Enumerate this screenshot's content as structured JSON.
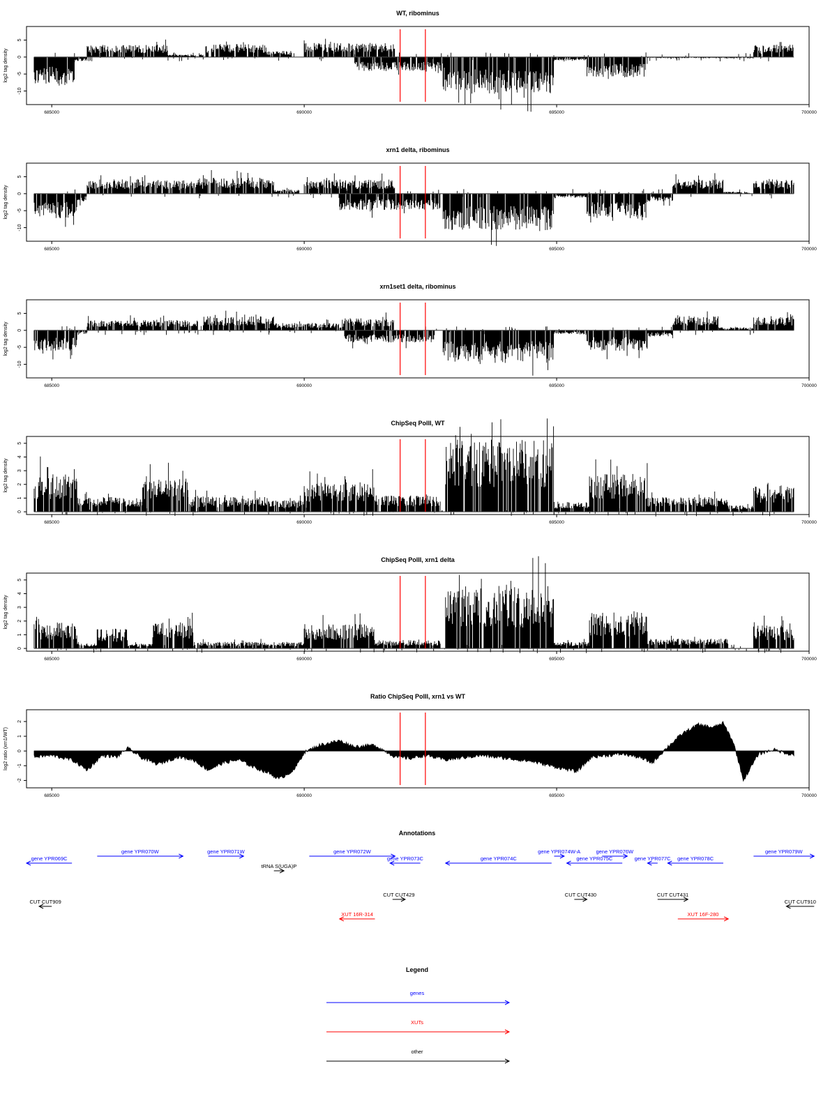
{
  "colors": {
    "genes": "#0000ff",
    "xuts": "#ff0000",
    "other": "#000000",
    "marker": "#ff0000",
    "signal": "#000000",
    "frame": "#000000"
  },
  "chart_data": [
    {
      "type": "bar",
      "title": "WT, ribominus",
      "ylabel": "log2 tag density",
      "xlim": [
        684500,
        700000
      ],
      "ylim": [
        -14,
        9
      ],
      "yticks": [
        -10,
        -5,
        0,
        5
      ],
      "xticks": [
        685000,
        690000,
        695000,
        700000
      ],
      "xtick_labels": [
        "685000",
        "690000",
        "695000",
        "700000"
      ],
      "markers": [
        691900,
        692400
      ],
      "regions": [
        {
          "start": 684650,
          "end": 685450,
          "value": -7
        },
        {
          "start": 685450,
          "end": 685700,
          "value": -1
        },
        {
          "start": 685700,
          "end": 687300,
          "value": 3
        },
        {
          "start": 687300,
          "end": 688000,
          "value": 0.6
        },
        {
          "start": 688050,
          "end": 689250,
          "value": 3.2
        },
        {
          "start": 689250,
          "end": 689800,
          "value": 1.5
        },
        {
          "start": 690000,
          "end": 691800,
          "value": 3.5
        },
        {
          "start": 691000,
          "end": 692800,
          "value": -3.5
        },
        {
          "start": 692750,
          "end": 694950,
          "value": -9
        },
        {
          "start": 694950,
          "end": 695600,
          "value": -0.8
        },
        {
          "start": 695600,
          "end": 696800,
          "value": -5
        },
        {
          "start": 696800,
          "end": 698900,
          "value": -0.3
        },
        {
          "start": 698900,
          "end": 699700,
          "value": 3
        }
      ]
    },
    {
      "type": "bar",
      "title": "xrn1 delta, ribominus",
      "ylabel": "log2 tag density",
      "xlim": [
        684500,
        700000
      ],
      "ylim": [
        -14,
        9
      ],
      "yticks": [
        -10,
        -5,
        0,
        5
      ],
      "xticks": [
        685000,
        690000,
        695000,
        700000
      ],
      "xtick_labels": [
        "685000",
        "690000",
        "695000",
        "700000"
      ],
      "markers": [
        691900,
        692400
      ],
      "regions": [
        {
          "start": 684650,
          "end": 685500,
          "value": -6
        },
        {
          "start": 685500,
          "end": 685700,
          "value": -2
        },
        {
          "start": 685700,
          "end": 688000,
          "value": 3.5
        },
        {
          "start": 688000,
          "end": 689400,
          "value": 4
        },
        {
          "start": 689400,
          "end": 689900,
          "value": 1
        },
        {
          "start": 690000,
          "end": 691800,
          "value": 3.5
        },
        {
          "start": 690700,
          "end": 692700,
          "value": -4
        },
        {
          "start": 692750,
          "end": 694950,
          "value": -9
        },
        {
          "start": 694950,
          "end": 695600,
          "value": -1
        },
        {
          "start": 695600,
          "end": 696800,
          "value": -6
        },
        {
          "start": 696800,
          "end": 697300,
          "value": -2
        },
        {
          "start": 697300,
          "end": 698300,
          "value": 3.5
        },
        {
          "start": 698300,
          "end": 698800,
          "value": 0.5
        },
        {
          "start": 698900,
          "end": 699700,
          "value": 3.5
        }
      ]
    },
    {
      "type": "bar",
      "title": "xrn1set1 delta, ribominus",
      "ylabel": "log2 tag density",
      "xlim": [
        684500,
        700000
      ],
      "ylim": [
        -14,
        9
      ],
      "yticks": [
        -10,
        -5,
        0,
        5
      ],
      "xticks": [
        685000,
        690000,
        695000,
        700000
      ],
      "xtick_labels": [
        "685000",
        "690000",
        "695000",
        "700000"
      ],
      "markers": [
        691900,
        692400
      ],
      "regions": [
        {
          "start": 684650,
          "end": 685500,
          "value": -5
        },
        {
          "start": 685500,
          "end": 685700,
          "value": -1
        },
        {
          "start": 685700,
          "end": 687900,
          "value": 2.5
        },
        {
          "start": 688000,
          "end": 689400,
          "value": 3.5
        },
        {
          "start": 689400,
          "end": 690800,
          "value": 1.8
        },
        {
          "start": 690800,
          "end": 691800,
          "value": 3
        },
        {
          "start": 690800,
          "end": 692600,
          "value": -3
        },
        {
          "start": 692750,
          "end": 694950,
          "value": -8
        },
        {
          "start": 694950,
          "end": 695600,
          "value": -1
        },
        {
          "start": 695600,
          "end": 696800,
          "value": -5
        },
        {
          "start": 696800,
          "end": 697300,
          "value": -1.5
        },
        {
          "start": 697300,
          "end": 698200,
          "value": 3.5
        },
        {
          "start": 698200,
          "end": 698900,
          "value": 0.8
        },
        {
          "start": 698900,
          "end": 699700,
          "value": 3.5
        }
      ]
    },
    {
      "type": "bar",
      "title": "ChipSeq PolII, WT",
      "ylabel": "log2 tag density",
      "xlim": [
        684500,
        700000
      ],
      "ylim": [
        -0.2,
        5.5
      ],
      "yticks": [
        0,
        1,
        2,
        3,
        4,
        5
      ],
      "xticks": [
        685000,
        690000,
        695000,
        700000
      ],
      "xtick_labels": [
        "685000",
        "690000",
        "695000",
        "700000"
      ],
      "markers": [
        691900,
        692400
      ],
      "regions": [
        {
          "start": 684650,
          "end": 685500,
          "value": 2.3
        },
        {
          "start": 685500,
          "end": 686800,
          "value": 0.9
        },
        {
          "start": 686800,
          "end": 687700,
          "value": 2
        },
        {
          "start": 687700,
          "end": 689300,
          "value": 0.9
        },
        {
          "start": 689300,
          "end": 690000,
          "value": 0.7
        },
        {
          "start": 690000,
          "end": 691400,
          "value": 1.8
        },
        {
          "start": 691400,
          "end": 692700,
          "value": 1
        },
        {
          "start": 692800,
          "end": 694950,
          "value": 4.4
        },
        {
          "start": 694950,
          "end": 695650,
          "value": 0.6
        },
        {
          "start": 695650,
          "end": 696800,
          "value": 2.3
        },
        {
          "start": 696800,
          "end": 698400,
          "value": 0.9
        },
        {
          "start": 698400,
          "end": 698900,
          "value": 0.4
        },
        {
          "start": 698900,
          "end": 699700,
          "value": 1.6
        }
      ]
    },
    {
      "type": "bar",
      "title": "ChipSeq PolII, xrn1 delta",
      "ylabel": "log2 tag density",
      "xlim": [
        684500,
        700000
      ],
      "ylim": [
        -0.2,
        5.5
      ],
      "yticks": [
        0,
        1,
        2,
        3,
        4,
        5
      ],
      "xticks": [
        685000,
        690000,
        695000,
        700000
      ],
      "xtick_labels": [
        "685000",
        "690000",
        "695000",
        "700000"
      ],
      "markers": [
        691900,
        692400
      ],
      "regions": [
        {
          "start": 684650,
          "end": 685500,
          "value": 1.6
        },
        {
          "start": 685500,
          "end": 685900,
          "value": 0.3
        },
        {
          "start": 685900,
          "end": 686500,
          "value": 1.2
        },
        {
          "start": 686500,
          "end": 687000,
          "value": 0.3
        },
        {
          "start": 687000,
          "end": 687800,
          "value": 1.6
        },
        {
          "start": 687800,
          "end": 690000,
          "value": 0.4
        },
        {
          "start": 690000,
          "end": 691400,
          "value": 1.5
        },
        {
          "start": 691400,
          "end": 692700,
          "value": 0.5
        },
        {
          "start": 692800,
          "end": 694950,
          "value": 3.8
        },
        {
          "start": 694950,
          "end": 695650,
          "value": 0.4
        },
        {
          "start": 695650,
          "end": 696800,
          "value": 2.2
        },
        {
          "start": 696800,
          "end": 698400,
          "value": 0.6
        },
        {
          "start": 698900,
          "end": 699700,
          "value": 1.4
        }
      ]
    },
    {
      "type": "area",
      "title": "Ratio ChipSeq PolII, xrn1 vs WT",
      "ylabel": "log2 ratio (xrn1/WT)",
      "xlim": [
        684500,
        700000
      ],
      "ylim": [
        -2.5,
        2.8
      ],
      "yticks": [
        -2,
        -1,
        0,
        1,
        2
      ],
      "xticks": [
        685000,
        690000,
        695000,
        700000
      ],
      "xtick_labels": [
        "685000",
        "690000",
        "695000",
        "700000"
      ],
      "markers": [
        691900,
        692400
      ],
      "x": [
        684650,
        685000,
        685400,
        685700,
        686000,
        686300,
        686500,
        686800,
        687100,
        687500,
        687800,
        688100,
        688400,
        688700,
        689000,
        689300,
        689500,
        689800,
        690000,
        690300,
        690700,
        691000,
        691400,
        691800,
        692100,
        692400,
        692800,
        693500,
        694000,
        694500,
        695000,
        695400,
        695700,
        696000,
        696300,
        696600,
        696900,
        697200,
        697500,
        697800,
        698100,
        698300,
        698500,
        698700,
        699000,
        699300,
        699700
      ],
      "y": [
        -0.4,
        -0.3,
        -0.6,
        -1.3,
        -0.3,
        -0.4,
        0.2,
        -0.5,
        -0.9,
        -0.4,
        -0.6,
        -1.3,
        -0.8,
        -0.6,
        -1.1,
        -1.5,
        -1.9,
        -1.3,
        -0.1,
        0.4,
        0.7,
        0.3,
        0.4,
        -0.4,
        -0.5,
        -0.3,
        -0.6,
        -0.3,
        -0.5,
        -0.7,
        -1.1,
        -1.4,
        -0.4,
        -0.3,
        -0.2,
        -0.4,
        -0.8,
        0.3,
        1.2,
        1.8,
        1.6,
        1.9,
        0.6,
        -2.0,
        -0.2,
        0.1,
        -0.3
      ]
    }
  ],
  "annotations": {
    "title": "Annotations",
    "features": [
      {
        "label": "gene YPR069C",
        "start": 685400,
        "end": 684500,
        "row": 1,
        "type": "genes"
      },
      {
        "label": "gene YPR070W",
        "start": 685900,
        "end": 687600,
        "row": 0,
        "type": "genes"
      },
      {
        "label": "gene YPR071W",
        "start": 688100,
        "end": 688800,
        "row": 0,
        "type": "genes"
      },
      {
        "label": "tRNA S(UGA)P",
        "start": 689400,
        "end": 689600,
        "row": 2,
        "type": "other"
      },
      {
        "label": "gene YPR072W",
        "start": 690100,
        "end": 691800,
        "row": 0,
        "type": "genes"
      },
      {
        "label": "gene YPR073C",
        "start": 692300,
        "end": 691700,
        "row": 1,
        "type": "genes"
      },
      {
        "label": "gene YPR074C",
        "start": 694900,
        "end": 692800,
        "row": 1,
        "type": "genes"
      },
      {
        "label": "gene YPR074W-A",
        "start": 694950,
        "end": 695150,
        "row": 0,
        "type": "genes"
      },
      {
        "label": "gene YPR075C",
        "start": 696300,
        "end": 695200,
        "row": 1,
        "type": "genes"
      },
      {
        "label": "gene YPR076W",
        "start": 695900,
        "end": 696400,
        "row": 0,
        "type": "genes"
      },
      {
        "label": "gene YPR077C",
        "start": 697000,
        "end": 696800,
        "row": 1,
        "type": "genes"
      },
      {
        "label": "gene YPR078C",
        "start": 698300,
        "end": 697200,
        "row": 1,
        "type": "genes"
      },
      {
        "label": "gene YPR079W",
        "start": 698900,
        "end": 700100,
        "row": 0,
        "type": "genes"
      },
      {
        "label": "CUT CUT909",
        "start": 685000,
        "end": 684750,
        "row": 4,
        "type": "other"
      },
      {
        "label": "CUT CUT429",
        "start": 691750,
        "end": 692000,
        "row": 3,
        "type": "other"
      },
      {
        "label": "CUT CUT430",
        "start": 695350,
        "end": 695600,
        "row": 3,
        "type": "other"
      },
      {
        "label": "CUT CUT431",
        "start": 697000,
        "end": 697600,
        "row": 3,
        "type": "other"
      },
      {
        "label": "CUT CUT910",
        "start": 700100,
        "end": 699550,
        "row": 4,
        "type": "other"
      },
      {
        "label": "XUT 16R-314",
        "start": 691400,
        "end": 690700,
        "row": 5,
        "type": "xuts"
      },
      {
        "label": "XUT 16F-280",
        "start": 697400,
        "end": 698400,
        "row": 5,
        "type": "xuts"
      }
    ]
  },
  "legend": {
    "title": "Legend",
    "items": [
      {
        "label": "genes",
        "color": "#0000ff"
      },
      {
        "label": "XUTs",
        "color": "#ff0000"
      },
      {
        "label": "other",
        "color": "#000000"
      }
    ]
  }
}
